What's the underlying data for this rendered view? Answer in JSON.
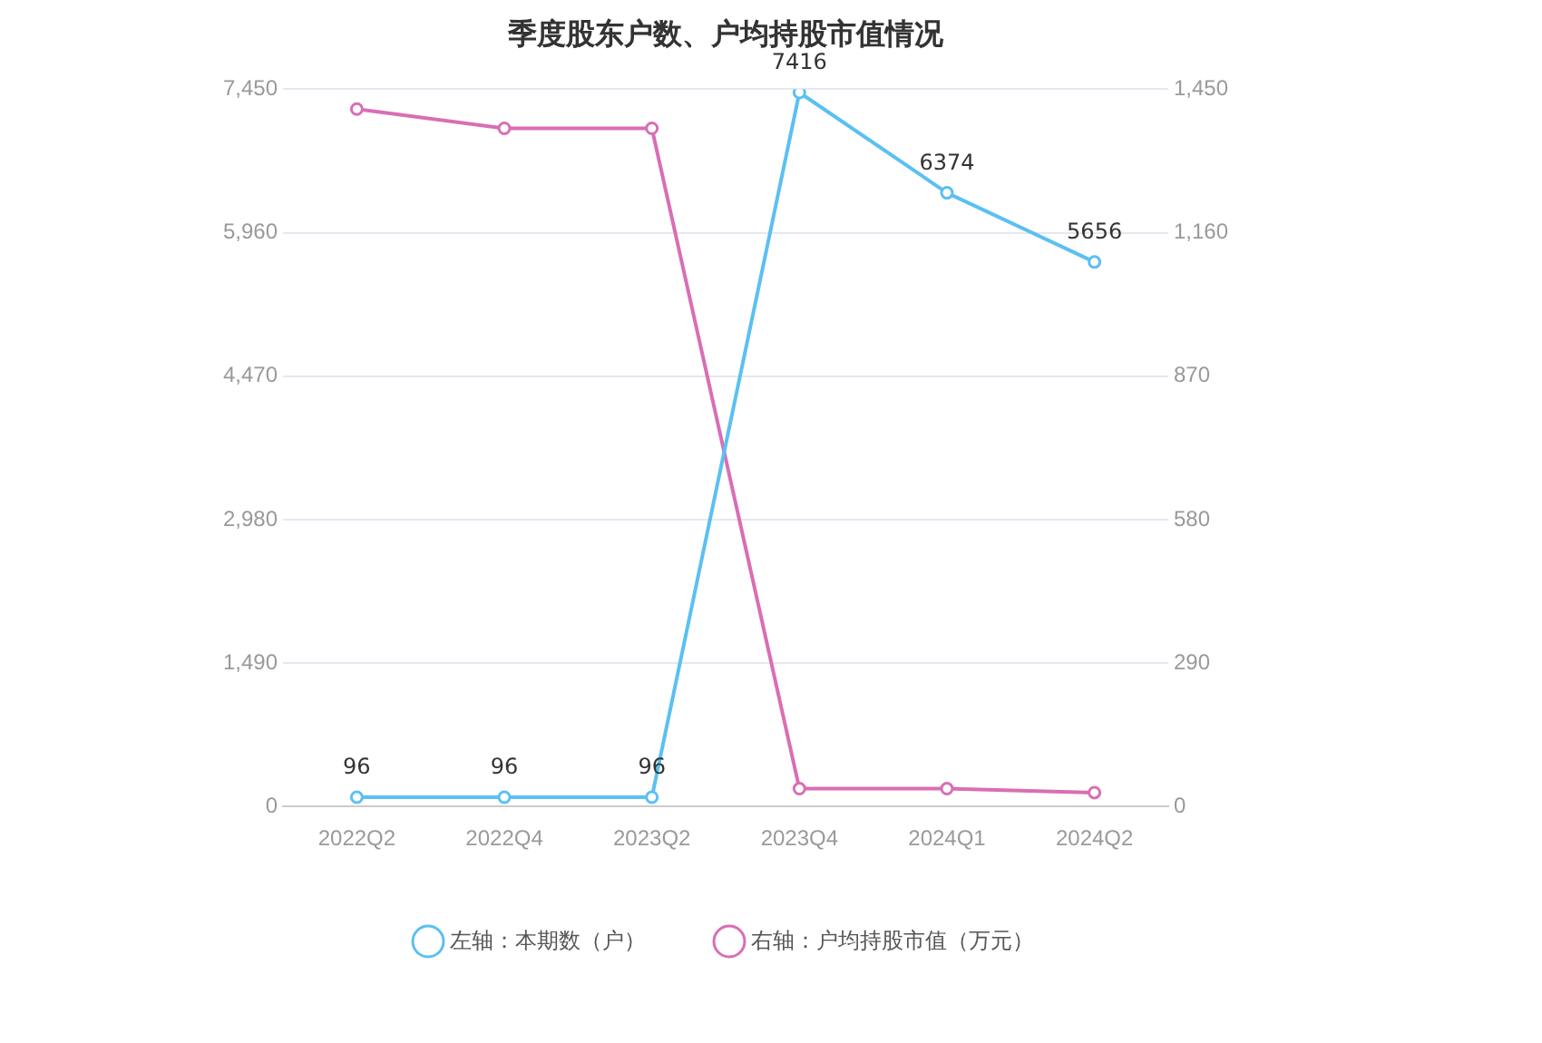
{
  "chart_data": {
    "type": "line",
    "title": "季度股东户数、户均持股市值情况",
    "categories": [
      "2022Q2",
      "2022Q4",
      "2023Q2",
      "2023Q4",
      "2024Q1",
      "2024Q2"
    ],
    "series": [
      {
        "name": "左轴：本期数（户）",
        "color": "#5bc0f2",
        "values": [
          96,
          96,
          96,
          7416,
          6374,
          5656
        ],
        "value_labels": [
          "96",
          "96",
          "96",
          "7416",
          "6374",
          "5656"
        ]
      },
      {
        "name": "右轴：户均持股市值（万元）",
        "color": "#d96eb4",
        "values": [
          1410,
          1371,
          1371,
          36,
          36,
          28
        ],
        "axis": "y2"
      }
    ],
    "ylim": [
      0,
      7450
    ],
    "yticks": [
      0,
      {
        "value": 1490,
        "label": "1,490"
      },
      {
        "value": 2980,
        "label": "2,980"
      },
      {
        "value": 4470,
        "label": "4,470"
      },
      {
        "value": 5960,
        "label": "5,960"
      },
      {
        "value": 7450,
        "label": "7,450"
      }
    ],
    "y2lim": [
      0,
      1450
    ],
    "y2ticks": [
      0,
      290,
      580,
      870,
      {
        "value": 1160,
        "label": "1,160"
      },
      {
        "value": 1450,
        "label": "1,450"
      }
    ],
    "grid": "y",
    "legend": "bottom",
    "marker": "circle",
    "line_style": "solid"
  }
}
